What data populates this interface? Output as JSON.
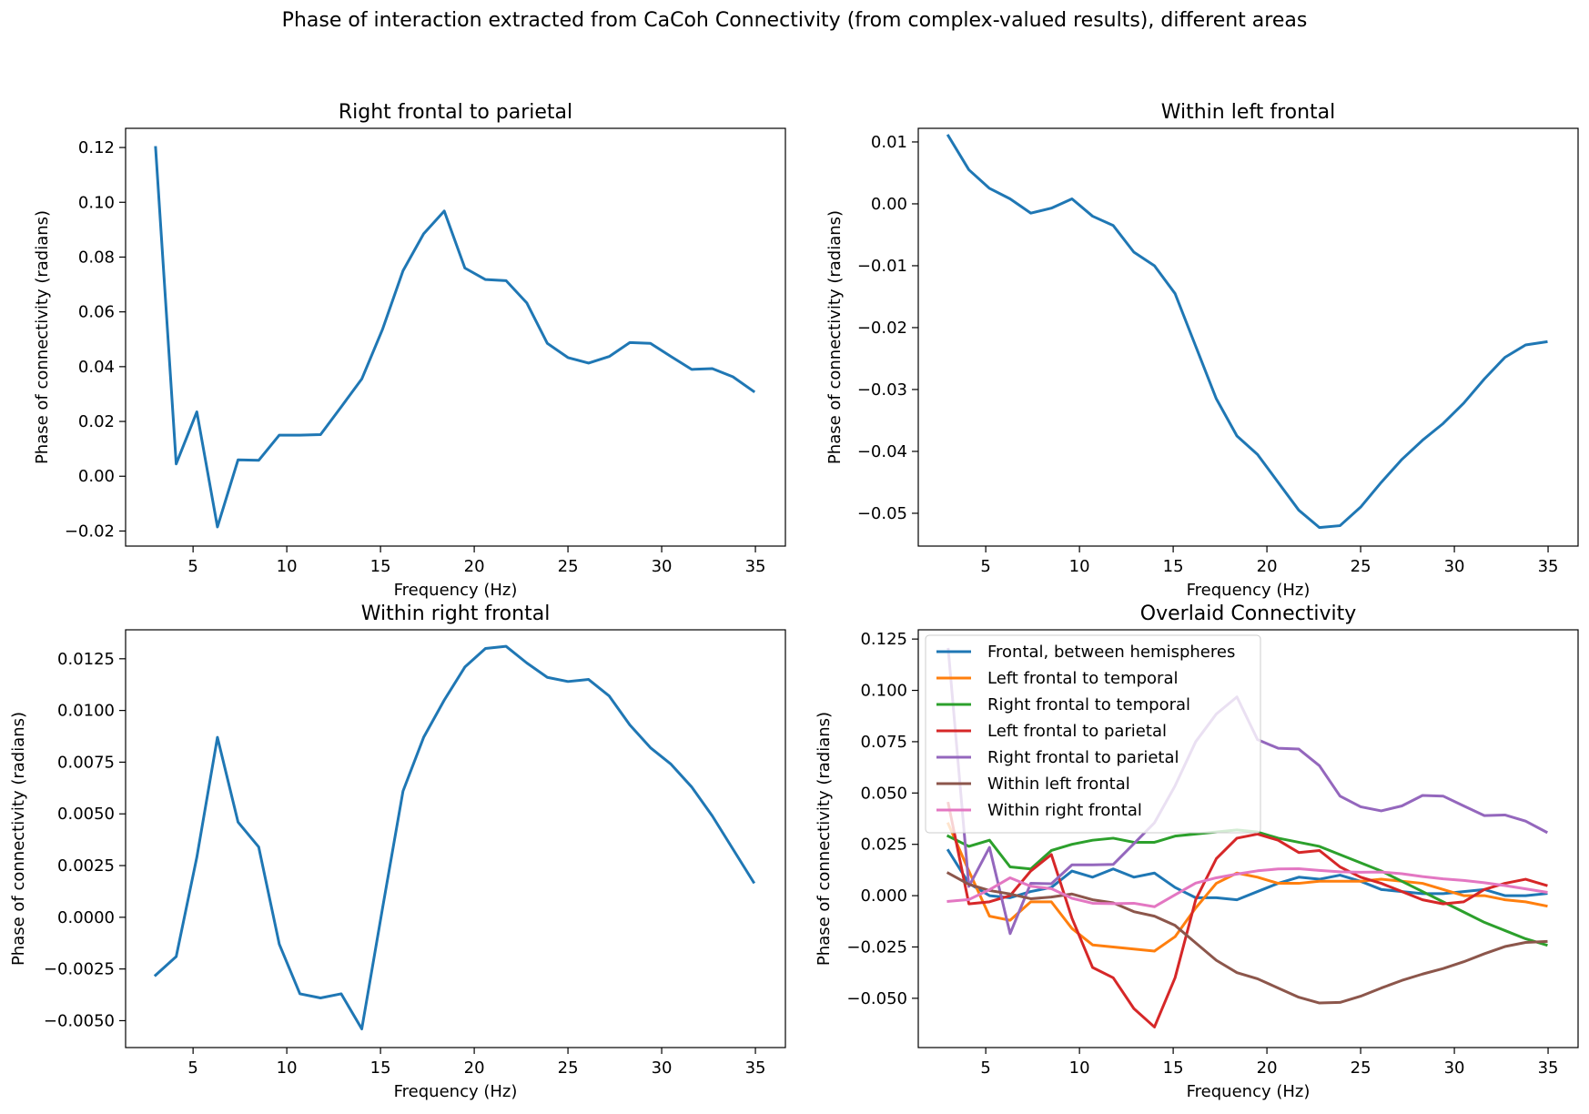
{
  "figure": {
    "suptitle": "Phase of interaction extracted from CaCoh Connectivity (from complex-valued results), different areas"
  },
  "colors": {
    "C0": "#1f77b4",
    "C1": "#ff7f0e",
    "C2": "#2ca02c",
    "C3": "#d62728",
    "C4": "#9467bd",
    "C5": "#8c564b",
    "C6": "#e377c2"
  },
  "chart_data": [
    {
      "type": "line",
      "title": "Right frontal to parietal",
      "xlabel": "Frequency (Hz)",
      "ylabel": "Phase of connectivity (radians)",
      "xlim": [
        1.4,
        36.6
      ],
      "ylim": [
        -0.0255,
        0.127
      ],
      "xticks": [
        5,
        10,
        15,
        20,
        25,
        30,
        35
      ],
      "xtick_labels": [
        "5",
        "10",
        "15",
        "20",
        "25",
        "30",
        "35"
      ],
      "yticks": [
        -0.02,
        0.0,
        0.02,
        0.04,
        0.06,
        0.08,
        0.1,
        0.12
      ],
      "ytick_labels": [
        "−0.02",
        "0.00",
        "0.02",
        "0.04",
        "0.06",
        "0.08",
        "0.10",
        "0.12"
      ],
      "series": [
        {
          "color": "#1f77b4",
          "x": [
            3.0,
            4.1,
            5.2,
            6.3,
            7.4,
            8.5,
            9.6,
            10.7,
            11.8,
            12.9,
            14.0,
            15.1,
            16.2,
            17.3,
            18.4,
            19.5,
            20.6,
            21.7,
            22.8,
            23.9,
            25.0,
            26.1,
            27.2,
            28.3,
            29.4,
            30.5,
            31.6,
            32.7,
            33.8,
            34.9
          ],
          "values": [
            0.12,
            0.0045,
            0.0235,
            -0.0185,
            0.006,
            0.0058,
            0.015,
            0.015,
            0.0152,
            0.0253,
            0.0355,
            0.0535,
            0.075,
            0.0885,
            0.0968,
            0.076,
            0.0718,
            0.0714,
            0.0633,
            0.0485,
            0.0433,
            0.0413,
            0.0437,
            0.0488,
            0.0485,
            0.0437,
            0.039,
            0.0393,
            0.0363,
            0.031
          ]
        }
      ]
    },
    {
      "type": "line",
      "title": "Within left frontal",
      "xlabel": "Frequency (Hz)",
      "ylabel": "Phase of connectivity (radians)",
      "xlim": [
        1.4,
        36.6
      ],
      "ylim": [
        -0.0553,
        0.0122
      ],
      "xticks": [
        5,
        10,
        15,
        20,
        25,
        30,
        35
      ],
      "xtick_labels": [
        "5",
        "10",
        "15",
        "20",
        "25",
        "30",
        "35"
      ],
      "yticks": [
        -0.05,
        -0.04,
        -0.03,
        -0.02,
        -0.01,
        0.0,
        0.01
      ],
      "ytick_labels": [
        "−0.05",
        "−0.04",
        "−0.03",
        "−0.02",
        "−0.01",
        "0.00",
        "0.01"
      ],
      "series": [
        {
          "color": "#1f77b4",
          "x": [
            3.0,
            4.1,
            5.2,
            6.3,
            7.4,
            8.5,
            9.6,
            10.7,
            11.8,
            12.9,
            14.0,
            15.1,
            16.2,
            17.3,
            18.4,
            19.5,
            20.6,
            21.7,
            22.8,
            23.9,
            25.0,
            26.1,
            27.2,
            28.3,
            29.4,
            30.5,
            31.6,
            32.7,
            33.8,
            34.9
          ],
          "values": [
            0.011,
            0.0055,
            0.0025,
            0.0008,
            -0.0015,
            -0.0007,
            0.0008,
            -0.002,
            -0.0035,
            -0.0078,
            -0.01,
            -0.0145,
            -0.023,
            -0.0315,
            -0.0375,
            -0.0405,
            -0.045,
            -0.0495,
            -0.0523,
            -0.052,
            -0.049,
            -0.045,
            -0.0413,
            -0.0382,
            -0.0355,
            -0.0322,
            -0.0283,
            -0.0248,
            -0.0228,
            -0.0223
          ]
        }
      ]
    },
    {
      "type": "line",
      "title": "Within right frontal",
      "xlabel": "Frequency (Hz)",
      "ylabel": "Phase of connectivity (radians)",
      "xlim": [
        1.4,
        36.6
      ],
      "ylim": [
        -0.0063,
        0.0139
      ],
      "xticks": [
        5,
        10,
        15,
        20,
        25,
        30,
        35
      ],
      "xtick_labels": [
        "5",
        "10",
        "15",
        "20",
        "25",
        "30",
        "35"
      ],
      "yticks": [
        -0.005,
        -0.0025,
        0.0,
        0.0025,
        0.005,
        0.0075,
        0.01,
        0.0125
      ],
      "ytick_labels": [
        "−0.0050",
        "−0.0025",
        "0.0000",
        "0.0025",
        "0.0050",
        "0.0075",
        "0.0100",
        "0.0125"
      ],
      "series": [
        {
          "color": "#1f77b4",
          "x": [
            3.0,
            4.1,
            5.2,
            6.3,
            7.4,
            8.5,
            9.6,
            10.7,
            11.8,
            12.9,
            14.0,
            15.1,
            16.2,
            17.3,
            18.4,
            19.5,
            20.6,
            21.7,
            22.8,
            23.9,
            25.0,
            26.1,
            27.2,
            28.3,
            29.4,
            30.5,
            31.6,
            32.7,
            33.8,
            34.9
          ],
          "values": [
            -0.0028,
            -0.0019,
            0.0029,
            0.0087,
            0.0046,
            0.0034,
            -0.0013,
            -0.0037,
            -0.0039,
            -0.0037,
            -0.0054,
            0.0004,
            0.0061,
            0.0087,
            0.0105,
            0.0121,
            0.013,
            0.0131,
            0.0123,
            0.0116,
            0.0114,
            0.0115,
            0.0107,
            0.0093,
            0.0082,
            0.0074,
            0.0063,
            0.0049,
            0.0033,
            0.0017
          ]
        }
      ]
    },
    {
      "type": "line",
      "title": "Overlaid Connectivity",
      "xlabel": "Frequency (Hz)",
      "ylabel": "Phase of connectivity (radians)",
      "xlim": [
        1.4,
        36.6
      ],
      "ylim": [
        -0.074,
        0.1295
      ],
      "xticks": [
        5,
        10,
        15,
        20,
        25,
        30,
        35
      ],
      "xtick_labels": [
        "5",
        "10",
        "15",
        "20",
        "25",
        "30",
        "35"
      ],
      "yticks": [
        -0.05,
        -0.025,
        0.0,
        0.025,
        0.05,
        0.075,
        0.1,
        0.125
      ],
      "ytick_labels": [
        "−0.050",
        "−0.025",
        "0.000",
        "0.025",
        "0.050",
        "0.075",
        "0.100",
        "0.125"
      ],
      "legend_position": "upper-left",
      "series": [
        {
          "name": "Frontal, between hemispheres",
          "color": "#1f77b4",
          "x": [
            3.0,
            4.1,
            5.2,
            6.3,
            7.4,
            8.5,
            9.6,
            10.7,
            11.8,
            12.9,
            14.0,
            15.1,
            16.2,
            17.3,
            18.4,
            19.5,
            20.6,
            21.7,
            22.8,
            23.9,
            25.0,
            26.1,
            27.2,
            28.3,
            29.4,
            30.5,
            31.6,
            32.7,
            33.8,
            34.9
          ],
          "values": [
            0.022,
            0.006,
            0.0,
            -0.001,
            0.002,
            0.004,
            0.012,
            0.009,
            0.013,
            0.009,
            0.011,
            0.004,
            -0.001,
            -0.001,
            -0.002,
            0.002,
            0.006,
            0.009,
            0.008,
            0.01,
            0.007,
            0.003,
            0.002,
            0.001,
            0.001,
            0.002,
            0.003,
            0.0,
            0.0,
            0.001
          ]
        },
        {
          "name": "Left frontal to temporal",
          "color": "#ff7f0e",
          "x": [
            3.0,
            4.1,
            5.2,
            6.3,
            7.4,
            8.5,
            9.6,
            10.7,
            11.8,
            12.9,
            14.0,
            15.1,
            16.2,
            17.3,
            18.4,
            19.5,
            20.6,
            21.7,
            22.8,
            23.9,
            25.0,
            26.1,
            27.2,
            28.3,
            29.4,
            30.5,
            31.6,
            32.7,
            33.8,
            34.9
          ],
          "values": [
            0.035,
            0.012,
            -0.01,
            -0.012,
            -0.003,
            -0.003,
            -0.016,
            -0.024,
            -0.025,
            -0.026,
            -0.027,
            -0.02,
            -0.006,
            0.006,
            0.011,
            0.009,
            0.006,
            0.006,
            0.007,
            0.007,
            0.007,
            0.008,
            0.007,
            0.006,
            0.003,
            0.0,
            0.0,
            -0.002,
            -0.003,
            -0.005
          ]
        },
        {
          "name": "Right frontal to temporal",
          "color": "#2ca02c",
          "x": [
            3.0,
            4.1,
            5.2,
            6.3,
            7.4,
            8.5,
            9.6,
            10.7,
            11.8,
            12.9,
            14.0,
            15.1,
            16.2,
            17.3,
            18.4,
            19.5,
            20.6,
            21.7,
            22.8,
            23.9,
            25.0,
            26.1,
            27.2,
            28.3,
            29.4,
            30.5,
            31.6,
            32.7,
            33.8,
            34.9
          ],
          "values": [
            0.029,
            0.024,
            0.027,
            0.014,
            0.013,
            0.022,
            0.025,
            0.027,
            0.028,
            0.026,
            0.026,
            0.029,
            0.03,
            0.031,
            0.032,
            0.031,
            0.028,
            0.026,
            0.024,
            0.02,
            0.016,
            0.012,
            0.007,
            0.002,
            -0.003,
            -0.008,
            -0.013,
            -0.017,
            -0.021,
            -0.024
          ]
        },
        {
          "name": "Left frontal to parietal",
          "color": "#d62728",
          "x": [
            3.0,
            4.1,
            5.2,
            6.3,
            7.4,
            8.5,
            9.6,
            10.7,
            11.8,
            12.9,
            14.0,
            15.1,
            16.2,
            17.3,
            18.4,
            19.5,
            20.6,
            21.7,
            22.8,
            23.9,
            25.0,
            26.1,
            27.2,
            28.3,
            29.4,
            30.5,
            31.6,
            32.7,
            33.8,
            34.9
          ],
          "values": [
            0.045,
            -0.004,
            -0.003,
            0.0,
            0.012,
            0.02,
            -0.011,
            -0.035,
            -0.04,
            -0.055,
            -0.064,
            -0.04,
            -0.002,
            0.018,
            0.028,
            0.03,
            0.027,
            0.021,
            0.022,
            0.014,
            0.009,
            0.006,
            0.002,
            -0.002,
            -0.004,
            -0.003,
            0.003,
            0.006,
            0.008,
            0.005
          ]
        },
        {
          "name": "Right frontal to parietal",
          "color": "#9467bd",
          "x": [
            3.0,
            4.1,
            5.2,
            6.3,
            7.4,
            8.5,
            9.6,
            10.7,
            11.8,
            12.9,
            14.0,
            15.1,
            16.2,
            17.3,
            18.4,
            19.5,
            20.6,
            21.7,
            22.8,
            23.9,
            25.0,
            26.1,
            27.2,
            28.3,
            29.4,
            30.5,
            31.6,
            32.7,
            33.8,
            34.9
          ],
          "values": [
            0.12,
            0.0045,
            0.0235,
            -0.0185,
            0.006,
            0.0058,
            0.015,
            0.015,
            0.0152,
            0.0253,
            0.0355,
            0.0535,
            0.075,
            0.0885,
            0.0968,
            0.076,
            0.0718,
            0.0714,
            0.0633,
            0.0485,
            0.0433,
            0.0413,
            0.0437,
            0.0488,
            0.0485,
            0.0437,
            0.039,
            0.0393,
            0.0363,
            0.031
          ]
        },
        {
          "name": "Within left frontal",
          "color": "#8c564b",
          "x": [
            3.0,
            4.1,
            5.2,
            6.3,
            7.4,
            8.5,
            9.6,
            10.7,
            11.8,
            12.9,
            14.0,
            15.1,
            16.2,
            17.3,
            18.4,
            19.5,
            20.6,
            21.7,
            22.8,
            23.9,
            25.0,
            26.1,
            27.2,
            28.3,
            29.4,
            30.5,
            31.6,
            32.7,
            33.8,
            34.9
          ],
          "values": [
            0.011,
            0.0055,
            0.0025,
            0.0008,
            -0.0015,
            -0.0007,
            0.0008,
            -0.002,
            -0.0035,
            -0.0078,
            -0.01,
            -0.0145,
            -0.023,
            -0.0315,
            -0.0375,
            -0.0405,
            -0.045,
            -0.0495,
            -0.0523,
            -0.052,
            -0.049,
            -0.045,
            -0.0413,
            -0.0382,
            -0.0355,
            -0.0322,
            -0.0283,
            -0.0248,
            -0.0228,
            -0.0223
          ]
        },
        {
          "name": "Within right frontal",
          "color": "#e377c2",
          "x": [
            3.0,
            4.1,
            5.2,
            6.3,
            7.4,
            8.5,
            9.6,
            10.7,
            11.8,
            12.9,
            14.0,
            15.1,
            16.2,
            17.3,
            18.4,
            19.5,
            20.6,
            21.7,
            22.8,
            23.9,
            25.0,
            26.1,
            27.2,
            28.3,
            29.4,
            30.5,
            31.6,
            32.7,
            33.8,
            34.9
          ],
          "values": [
            -0.0028,
            -0.0019,
            0.0029,
            0.0087,
            0.0046,
            0.0034,
            -0.0013,
            -0.0037,
            -0.0039,
            -0.0037,
            -0.0054,
            0.0004,
            0.0061,
            0.0087,
            0.0105,
            0.0121,
            0.013,
            0.0131,
            0.0123,
            0.0116,
            0.0114,
            0.0115,
            0.0107,
            0.0093,
            0.0082,
            0.0074,
            0.0063,
            0.0049,
            0.0033,
            0.0017
          ]
        }
      ]
    }
  ]
}
